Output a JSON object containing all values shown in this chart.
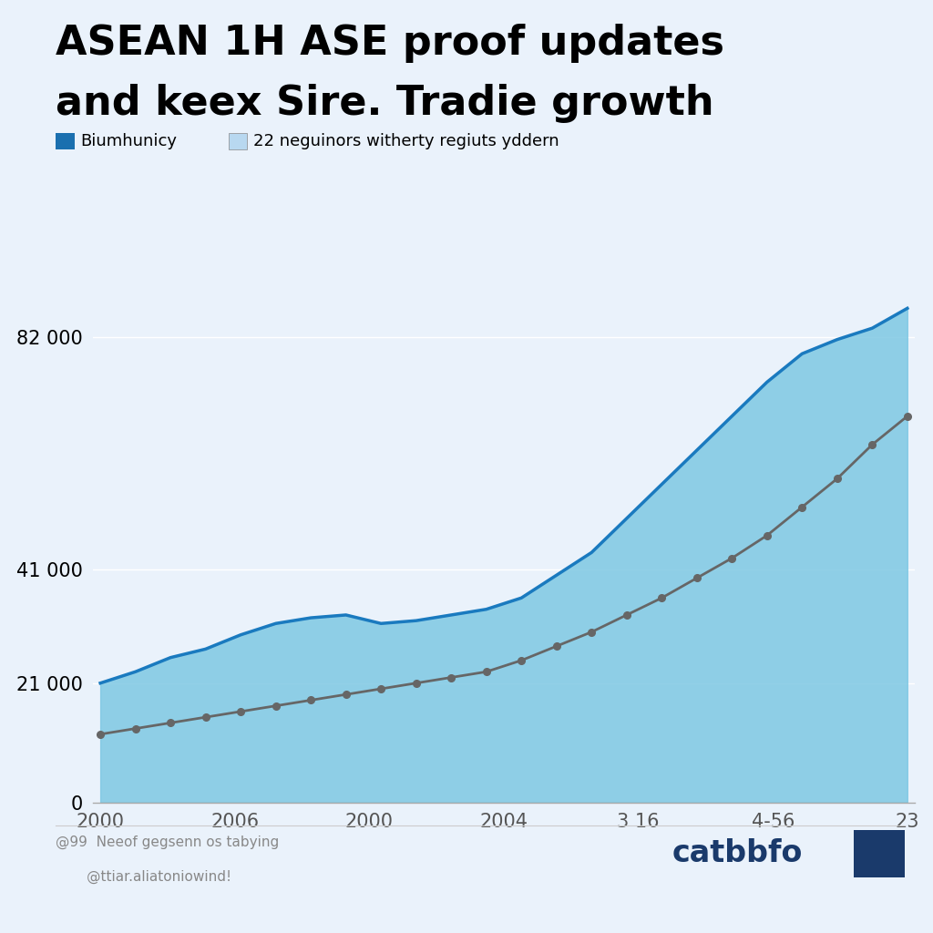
{
  "title_line1": "ASEAN 1H ASE proof updates",
  "title_line2": "and keex Sire. Tradie growth",
  "legend_label1": "Biumhunicy",
  "legend_label2": "22 neguinors witherty regiuts yddern",
  "legend_color1": "#1a6faf",
  "legend_color2": "#b8d8f0",
  "x_labels": [
    "2000",
    "2006",
    "2000",
    "2004",
    "3 16",
    "4-56",
    "23"
  ],
  "yticks": [
    0,
    21000,
    41000,
    82000
  ],
  "ytick_labels": [
    "0",
    "21 000",
    "41 000",
    "82 000"
  ],
  "background_color": "#eaf2fb",
  "plot_bg_color": "#eaf2fb",
  "blue_line_color": "#1a7abf",
  "blue_fill_color": "#7ec8e3",
  "grey_line_color": "#666666",
  "footer_text_left": "@99  Neeof gegsenn os tabying\n       @ttiar.aliatoniowind!",
  "brand_text": "catbbfo",
  "brand_color": "#1a3a6b",
  "blue_series": [
    21000,
    23000,
    25500,
    27000,
    29500,
    31500,
    32500,
    33000,
    31500,
    32000,
    33000,
    34000,
    36000,
    40000,
    44000,
    50000,
    56000,
    62000,
    68000,
    74000,
    79000,
    81500,
    83500,
    87000
  ],
  "grey_series": [
    12000,
    13000,
    14000,
    15000,
    16000,
    17000,
    18000,
    19000,
    20000,
    21000,
    22000,
    23000,
    25000,
    27500,
    30000,
    33000,
    36000,
    39500,
    43000,
    47000,
    52000,
    57000,
    63000,
    68000
  ],
  "n_points": 24,
  "ylim_max": 92000,
  "title_fontsize": 32,
  "label_fontsize": 15
}
